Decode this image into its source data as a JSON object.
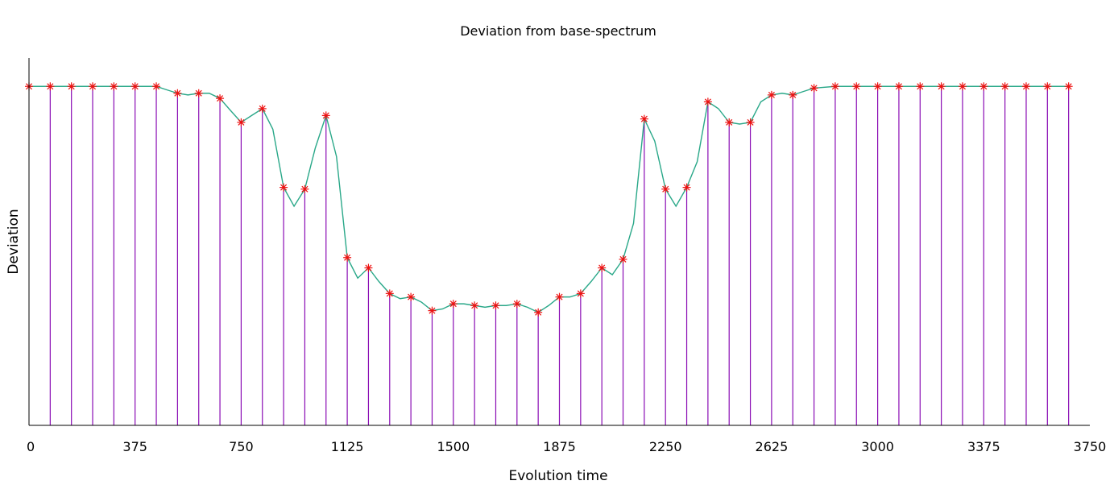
{
  "chart_data": {
    "type": "line",
    "title": "Deviation from base-spectrum",
    "xlabel": "Evolution time",
    "ylabel": "Deviation",
    "xlim": [
      0,
      3750
    ],
    "ylim": [
      0,
      1.0
    ],
    "x_ticks": [
      0,
      375,
      750,
      1125,
      1500,
      1875,
      2250,
      2625,
      3000,
      3375,
      3750
    ],
    "grid": false,
    "legend": "none",
    "colors": {
      "curve": "#2aa889",
      "stems": "#8a0cb4",
      "markers": "#ee1111",
      "axes": "#000000"
    },
    "sample_x": [
      0,
      75,
      150,
      225,
      300,
      375,
      450,
      525,
      600,
      675,
      750,
      825,
      900,
      975,
      1050,
      1125,
      1200,
      1275,
      1350,
      1425,
      1500,
      1575,
      1650,
      1725,
      1800,
      1875,
      1950,
      2025,
      2100,
      2175,
      2250,
      2325,
      2400,
      2475,
      2550,
      2625,
      2700,
      2775,
      2850,
      2925,
      3000,
      3075,
      3150,
      3225,
      3300,
      3375,
      3450,
      3525,
      3600,
      3675
    ],
    "sample_y": [
      0.99,
      0.99,
      0.99,
      0.99,
      0.99,
      0.99,
      0.99,
      0.97,
      0.97,
      0.955,
      0.885,
      0.925,
      0.695,
      0.69,
      0.905,
      0.49,
      0.46,
      0.385,
      0.375,
      0.335,
      0.355,
      0.35,
      0.35,
      0.355,
      0.33,
      0.375,
      0.385,
      0.46,
      0.485,
      0.895,
      0.69,
      0.695,
      0.945,
      0.885,
      0.885,
      0.965,
      0.965,
      0.985,
      0.99,
      0.99,
      0.99,
      0.99,
      0.99,
      0.99,
      0.99,
      0.99,
      0.99,
      0.99,
      0.99,
      0.99
    ],
    "curve_x": [
      0,
      75,
      150,
      225,
      300,
      375,
      450,
      487,
      525,
      562,
      600,
      637,
      675,
      712,
      750,
      787,
      825,
      862,
      900,
      937,
      975,
      1012,
      1050,
      1087,
      1125,
      1162,
      1200,
      1237,
      1275,
      1312,
      1350,
      1387,
      1425,
      1462,
      1500,
      1537,
      1575,
      1612,
      1650,
      1687,
      1725,
      1762,
      1800,
      1837,
      1875,
      1912,
      1950,
      1987,
      2025,
      2062,
      2100,
      2137,
      2175,
      2212,
      2250,
      2287,
      2325,
      2362,
      2400,
      2437,
      2475,
      2512,
      2550,
      2587,
      2625,
      2662,
      2700,
      2737,
      2775,
      2850,
      2925,
      3000,
      3075,
      3150,
      3225,
      3300,
      3375,
      3450,
      3525,
      3600,
      3675
    ],
    "curve_y": [
      0.99,
      0.99,
      0.99,
      0.99,
      0.99,
      0.99,
      0.99,
      0.98,
      0.97,
      0.965,
      0.97,
      0.97,
      0.955,
      0.92,
      0.885,
      0.905,
      0.925,
      0.865,
      0.695,
      0.64,
      0.69,
      0.81,
      0.905,
      0.785,
      0.49,
      0.43,
      0.46,
      0.42,
      0.385,
      0.37,
      0.375,
      0.36,
      0.335,
      0.34,
      0.355,
      0.355,
      0.35,
      0.345,
      0.35,
      0.35,
      0.355,
      0.345,
      0.33,
      0.35,
      0.375,
      0.375,
      0.385,
      0.42,
      0.46,
      0.44,
      0.485,
      0.59,
      0.895,
      0.83,
      0.69,
      0.64,
      0.695,
      0.77,
      0.945,
      0.925,
      0.885,
      0.88,
      0.885,
      0.945,
      0.965,
      0.97,
      0.965,
      0.975,
      0.985,
      0.99,
      0.99,
      0.99,
      0.99,
      0.99,
      0.99,
      0.99,
      0.99,
      0.99,
      0.99,
      0.99,
      0.99
    ]
  }
}
